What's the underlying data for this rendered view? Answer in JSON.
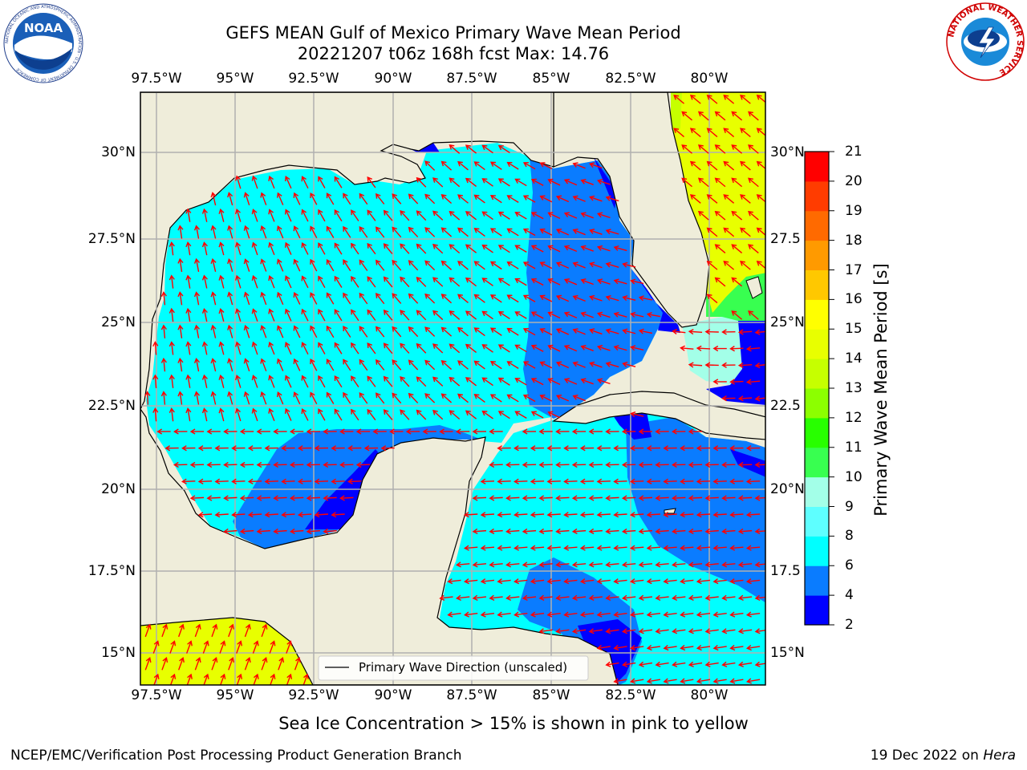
{
  "title": {
    "line1": "GEFS MEAN Gulf of Mexico Primary Wave Mean Period",
    "line2": "20221207 t06z 168h fcst   Max: 14.76"
  },
  "axes": {
    "lon_ticks": [
      "97.5°W",
      "95°W",
      "92.5°W",
      "90°W",
      "87.5°W",
      "85°W",
      "82.5°W",
      "80°W"
    ],
    "lat_ticks_left": [
      "30°N",
      "27.5°N",
      "25°N",
      "22.5°N",
      "20°N",
      "17.5°N",
      "15°N"
    ],
    "lat_ticks_right": [
      "30°N",
      "27.5",
      "25°N",
      "22.5",
      "20°N",
      "17.5",
      "15°N"
    ]
  },
  "legend": {
    "label": "Primary Wave Direction (unscaled)"
  },
  "colorbar": {
    "label": "Primary Wave Mean Period [s]",
    "ticks": [
      "2",
      "4",
      "6",
      "8",
      "9",
      "10",
      "11",
      "12",
      "13",
      "14",
      "15",
      "16",
      "17",
      "18",
      "19",
      "20",
      "21"
    ],
    "colors": [
      "#0000ff",
      "#0a7cff",
      "#00ffff",
      "#5effff",
      "#a3ffe8",
      "#38ff50",
      "#28ff00",
      "#8cff00",
      "#c6ff00",
      "#e8ff00",
      "#ffff00",
      "#ffc800",
      "#ff9a00",
      "#ff6a00",
      "#ff3c00",
      "#ff0000"
    ]
  },
  "colors": {
    "land": "#efedda",
    "grid": "#b0b0b0",
    "arrow": "#ff0000"
  },
  "logos": {
    "noaa_text": "NOAA",
    "noaa_ring": "NATIONAL OCEANIC AND ATMOSPHERIC ADMINISTRATION · U.S. DEPARTMENT OF COMMERCE",
    "nws_ring": "NATIONAL WEATHER SERVICE"
  },
  "footer": {
    "note": "Sea Ice Concentration > 15% is shown in pink to yellow",
    "left": "NCEP/EMC/Verification Post Processing Product Generation Branch",
    "right_prefix": "19 Dec 2022 on ",
    "right_host": "Hera"
  }
}
